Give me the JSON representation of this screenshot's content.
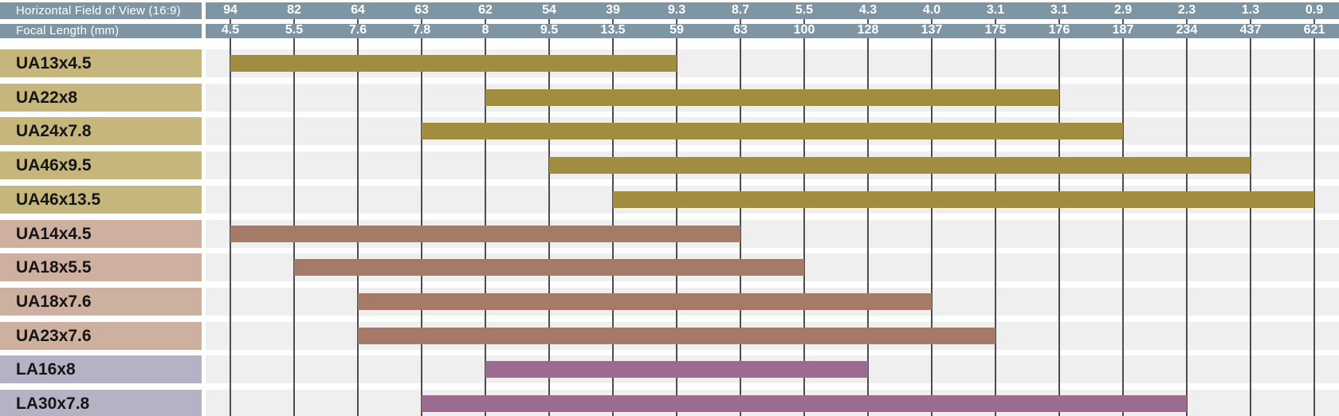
{
  "header": {
    "row1_label": "Horizontal Field of View (16:9)",
    "row2_label": "Focal Length (mm)",
    "columns": [
      {
        "hfov": "94",
        "focal": "4.5"
      },
      {
        "hfov": "82",
        "focal": "5.5"
      },
      {
        "hfov": "64",
        "focal": "7.6"
      },
      {
        "hfov": "63",
        "focal": "7.8"
      },
      {
        "hfov": "62",
        "focal": "8"
      },
      {
        "hfov": "54",
        "focal": "9.5"
      },
      {
        "hfov": "39",
        "focal": "13.5"
      },
      {
        "hfov": "9.3",
        "focal": "59"
      },
      {
        "hfov": "8.7",
        "focal": "63"
      },
      {
        "hfov": "5.5",
        "focal": "100"
      },
      {
        "hfov": "4.3",
        "focal": "128"
      },
      {
        "hfov": "4.0",
        "focal": "137"
      },
      {
        "hfov": "3.1",
        "focal": "175"
      },
      {
        "hfov": "3.1",
        "focal": "176"
      },
      {
        "hfov": "2.9",
        "focal": "187"
      },
      {
        "hfov": "2.3",
        "focal": "234"
      },
      {
        "hfov": "1.3",
        "focal": "437"
      },
      {
        "hfov": "0.9",
        "focal": "621"
      }
    ]
  },
  "rows": [
    {
      "label": "UA13x4.5",
      "group": "gold",
      "start_col": 0,
      "end_col": 7,
      "focal_range_mm": [
        4.5,
        59
      ]
    },
    {
      "label": "UA22x8",
      "group": "gold",
      "start_col": 4,
      "end_col": 13,
      "focal_range_mm": [
        8,
        176
      ]
    },
    {
      "label": "UA24x7.8",
      "group": "gold",
      "start_col": 3,
      "end_col": 14,
      "focal_range_mm": [
        7.8,
        187
      ]
    },
    {
      "label": "UA46x9.5",
      "group": "gold",
      "start_col": 5,
      "end_col": 16,
      "focal_range_mm": [
        9.5,
        437
      ]
    },
    {
      "label": "UA46x13.5",
      "group": "gold",
      "start_col": 6,
      "end_col": 17,
      "focal_range_mm": [
        13.5,
        621
      ]
    },
    {
      "label": "UA14x4.5",
      "group": "rose",
      "start_col": 0,
      "end_col": 8,
      "focal_range_mm": [
        4.5,
        63
      ]
    },
    {
      "label": "UA18x5.5",
      "group": "rose",
      "start_col": 1,
      "end_col": 9,
      "focal_range_mm": [
        5.5,
        100
      ]
    },
    {
      "label": "UA18x7.6",
      "group": "rose",
      "start_col": 2,
      "end_col": 11,
      "focal_range_mm": [
        7.6,
        137
      ]
    },
    {
      "label": "UA23x7.6",
      "group": "rose",
      "start_col": 2,
      "end_col": 12,
      "focal_range_mm": [
        7.6,
        175
      ]
    },
    {
      "label": "LA16x8",
      "group": "purple",
      "start_col": 4,
      "end_col": 10,
      "focal_range_mm": [
        8,
        128
      ]
    },
    {
      "label": "LA30x7.8",
      "group": "purple",
      "start_col": 3,
      "end_col": 15,
      "focal_range_mm": [
        7.8,
        234
      ]
    }
  ],
  "colors": {
    "header_bg": "#7e95a3",
    "header_text": "#ffffff",
    "gold_label_bg": "#c6b67c",
    "gold_bar": "#a08d3f",
    "rose_label_bg": "#cdb0a0",
    "rose_bar": "#a57a67",
    "purple_label_bg": "#b6b2c6",
    "purple_bar": "#9c6b90",
    "row_band_bg": "#efefef",
    "gridline": "#4d4d4d",
    "label_text": "#151515",
    "page_bg": "#ffffff"
  },
  "chart_data": {
    "type": "bar",
    "orientation": "horizontal_range",
    "title": "",
    "grid": true,
    "legend": "none",
    "axis_top": {
      "row1_label": "Horizontal Field of View (16:9)",
      "row1_ticks": [
        "94",
        "82",
        "64",
        "63",
        "62",
        "54",
        "39",
        "9.3",
        "8.7",
        "5.5",
        "4.3",
        "4.0",
        "3.1",
        "3.1",
        "2.9",
        "2.3",
        "1.3",
        "0.9"
      ],
      "row2_label": "Focal Length (mm)",
      "row2_ticks": [
        "4.5",
        "5.5",
        "7.6",
        "7.8",
        "8",
        "9.5",
        "13.5",
        "59",
        "63",
        "100",
        "128",
        "137",
        "175",
        "176",
        "187",
        "234",
        "437",
        "621"
      ],
      "scale": "ordinal-equal-spacing"
    },
    "series": [
      {
        "name": "UA13x4.5",
        "focal_min_mm": 4.5,
        "focal_max_mm": 59
      },
      {
        "name": "UA22x8",
        "focal_min_mm": 8,
        "focal_max_mm": 176
      },
      {
        "name": "UA24x7.8",
        "focal_min_mm": 7.8,
        "focal_max_mm": 187
      },
      {
        "name": "UA46x9.5",
        "focal_min_mm": 9.5,
        "focal_max_mm": 437
      },
      {
        "name": "UA46x13.5",
        "focal_min_mm": 13.5,
        "focal_max_mm": 621
      },
      {
        "name": "UA14x4.5",
        "focal_min_mm": 4.5,
        "focal_max_mm": 63
      },
      {
        "name": "UA18x5.5",
        "focal_min_mm": 5.5,
        "focal_max_mm": 100
      },
      {
        "name": "UA18x7.6",
        "focal_min_mm": 7.6,
        "focal_max_mm": 137
      },
      {
        "name": "UA23x7.6",
        "focal_min_mm": 7.6,
        "focal_max_mm": 175
      },
      {
        "name": "LA16x8",
        "focal_min_mm": 8,
        "focal_max_mm": 128
      },
      {
        "name": "LA30x7.8",
        "focal_min_mm": 7.8,
        "focal_max_mm": 234
      }
    ]
  }
}
